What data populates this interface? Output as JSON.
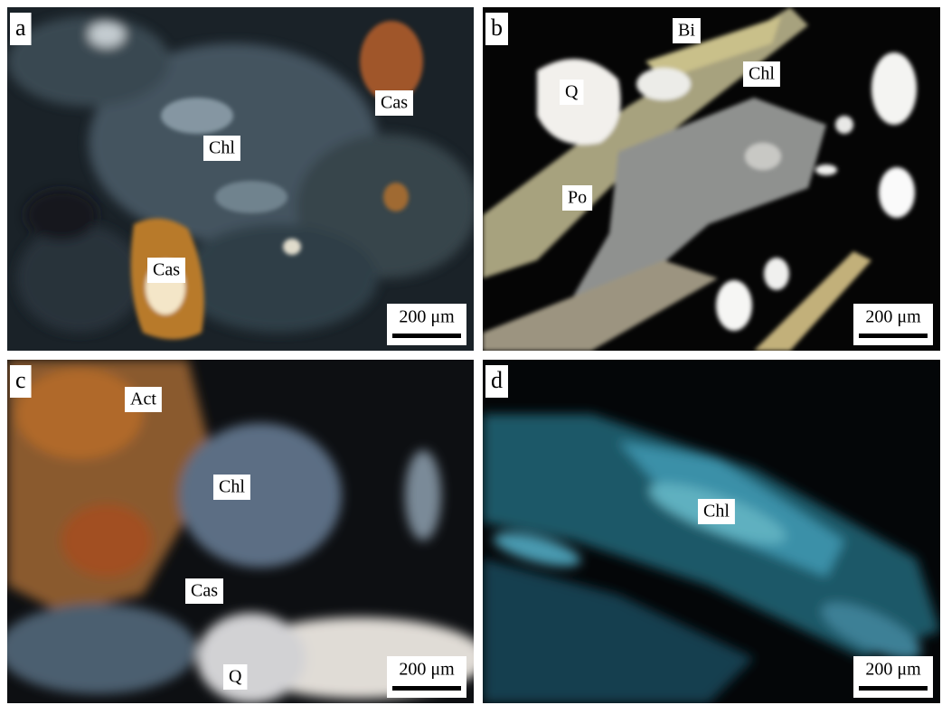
{
  "panels": [
    {
      "letter": "a",
      "labels": [
        "Cas",
        "Chl",
        "Cas"
      ],
      "scale": "200 μm"
    },
    {
      "letter": "b",
      "labels": [
        "Bi",
        "Chl",
        "Q",
        "Po"
      ],
      "scale": "200 μm"
    },
    {
      "letter": "c",
      "labels": [
        "Act",
        "Chl",
        "Cas",
        "Q"
      ],
      "scale": "200 μm"
    },
    {
      "letter": "d",
      "labels": [
        "Chl"
      ],
      "scale": "200 μm"
    }
  ]
}
